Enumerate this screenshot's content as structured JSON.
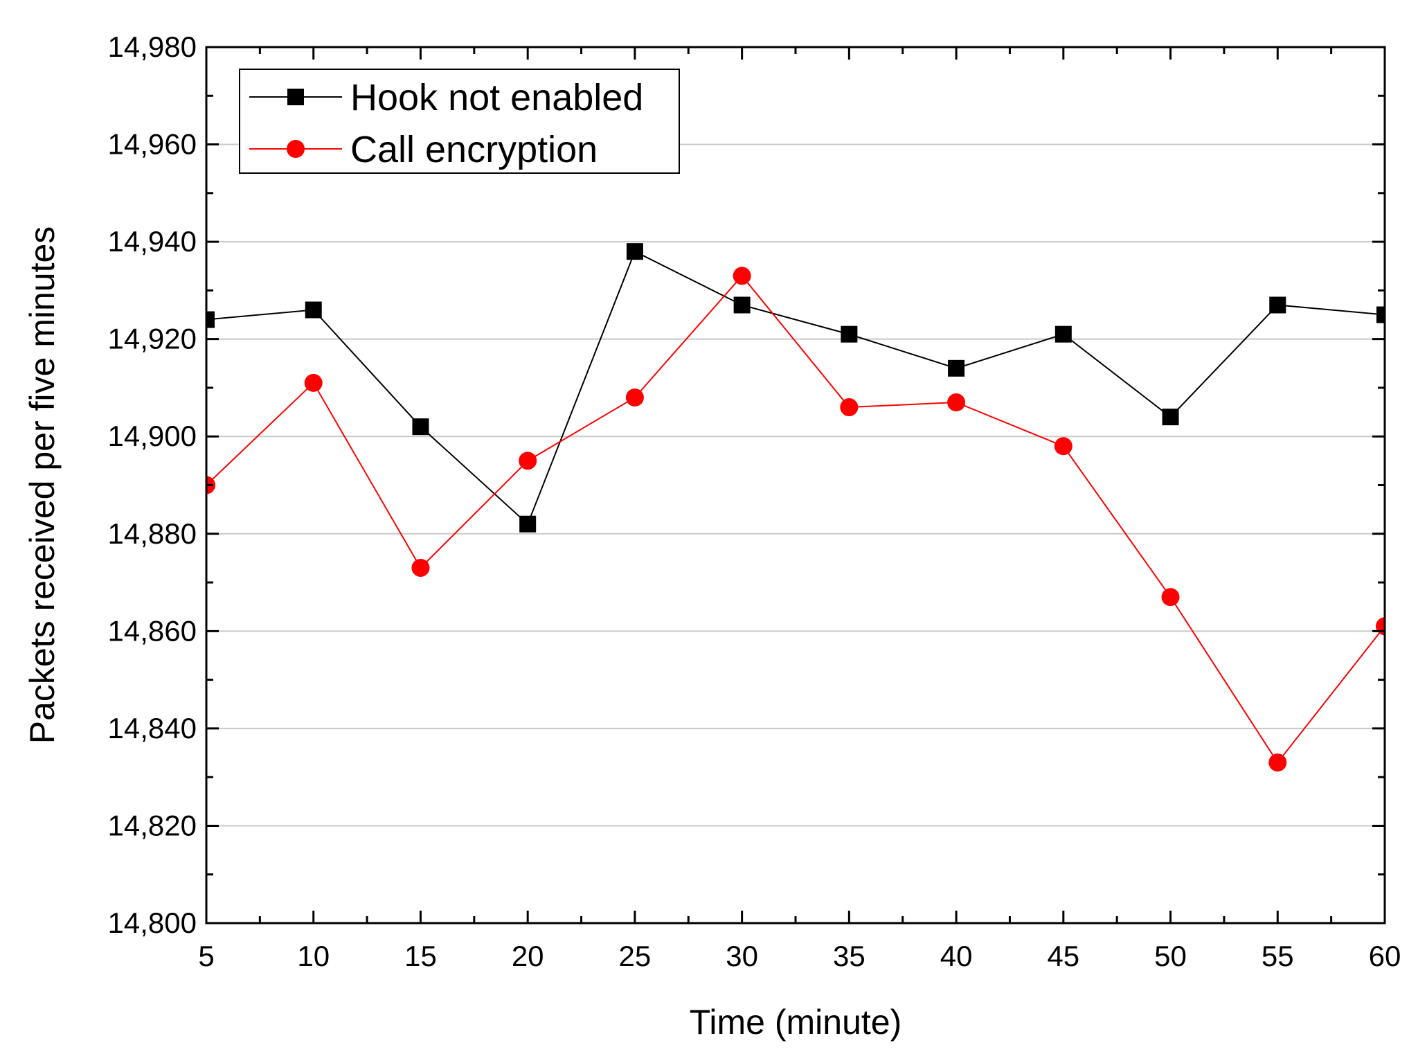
{
  "chart_data": {
    "type": "line",
    "title": "",
    "xlabel": "Time (minute)",
    "ylabel": "Packets received per five minutes",
    "xlim": [
      5,
      60
    ],
    "ylim": [
      14800,
      14980
    ],
    "x": [
      5,
      10,
      15,
      20,
      25,
      30,
      35,
      40,
      45,
      50,
      55,
      60
    ],
    "x_ticks": [
      "5",
      "10",
      "15",
      "20",
      "25",
      "30",
      "35",
      "40",
      "45",
      "50",
      "55",
      "60"
    ],
    "y_ticks": [
      {
        "value": 14800,
        "label": "14,800"
      },
      {
        "value": 14820,
        "label": "14,820"
      },
      {
        "value": 14840,
        "label": "14,840"
      },
      {
        "value": 14860,
        "label": "14,860"
      },
      {
        "value": 14880,
        "label": "14,880"
      },
      {
        "value": 14900,
        "label": "14,900"
      },
      {
        "value": 14920,
        "label": "14,920"
      },
      {
        "value": 14940,
        "label": "14,940"
      },
      {
        "value": 14960,
        "label": "14,960"
      },
      {
        "value": 14980,
        "label": "14,980"
      }
    ],
    "grid": true,
    "legend_position": "top-left",
    "series": [
      {
        "name": "Hook not enabled",
        "color": "#000000",
        "marker": "square",
        "values": [
          14924,
          14926,
          14902,
          14882,
          14938,
          14927,
          14921,
          14914,
          14921,
          14904,
          14927,
          14925
        ]
      },
      {
        "name": "Call encryption",
        "color": "#ff0000",
        "marker": "circle",
        "values": [
          14890,
          14911,
          14873,
          14895,
          14908,
          14933,
          14906,
          14907,
          14898,
          14867,
          14833,
          14861
        ]
      }
    ]
  }
}
